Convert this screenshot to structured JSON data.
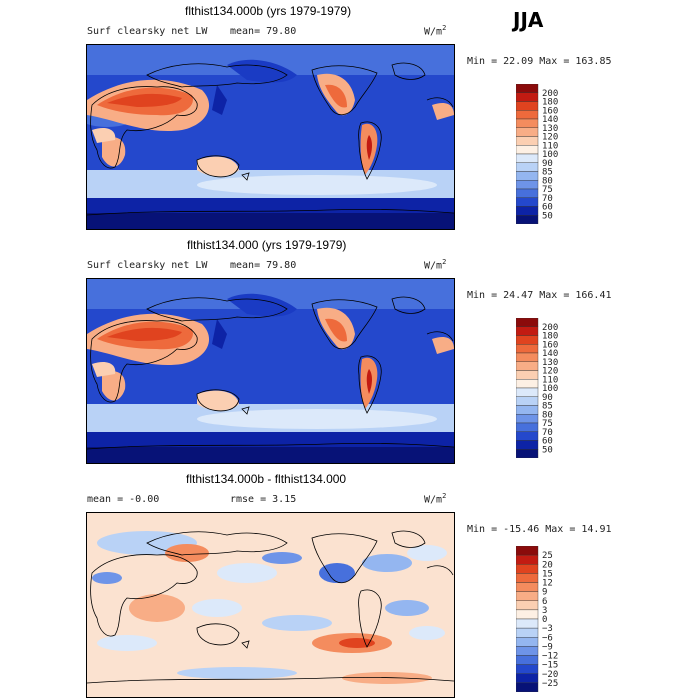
{
  "season": "JJA",
  "panels": [
    {
      "title": "flthist134.000b (yrs 1979-1979)",
      "left_label": "Surf clearsky net LW",
      "mid_label": "mean=  79.80",
      "units": "W/m",
      "units_sup": "2",
      "minmax": "Min =  22.09 Max = 163.85"
    },
    {
      "title": "flthist134.000 (yrs 1979-1979)",
      "left_label": "Surf clearsky net LW",
      "mid_label": "mean=  79.80",
      "units": "W/m",
      "units_sup": "2",
      "minmax": "Min =  24.47 Max = 166.41"
    },
    {
      "title": "flthist134.000b - flthist134.000",
      "left_label": "mean =  -0.00",
      "mid_label": "rmse =   3.15",
      "units": "W/m",
      "units_sup": "2",
      "minmax": "Min = -15.46 Max =  14.91"
    }
  ],
  "chart_data": [
    {
      "type": "heatmap",
      "title": "flthist134.000b (yrs 1979-1979)",
      "variable": "Surf clearsky net LW",
      "mean": 79.8,
      "min": 22.09,
      "max": 163.85,
      "units": "W/m2",
      "colorbar_levels": [
        "200",
        "180",
        "160",
        "140",
        "130",
        "120",
        "110",
        "100",
        "90",
        "85",
        "80",
        "75",
        "70",
        "60",
        "50"
      ],
      "colorbar_colors": [
        "#8b0b0b",
        "#c21b12",
        "#e0431f",
        "#ee6a3c",
        "#f48c5e",
        "#f8ad86",
        "#fbcfb2",
        "#fdf0e4",
        "#dce9fa",
        "#b9d2f6",
        "#94b6f0",
        "#6e94e8",
        "#4770dc",
        "#2448cc",
        "#0d23a6",
        "#071277"
      ]
    },
    {
      "type": "heatmap",
      "title": "flthist134.000 (yrs 1979-1979)",
      "variable": "Surf clearsky net LW",
      "mean": 79.8,
      "min": 24.47,
      "max": 166.41,
      "units": "W/m2",
      "colorbar_levels": [
        "200",
        "180",
        "160",
        "140",
        "130",
        "120",
        "110",
        "100",
        "90",
        "85",
        "80",
        "75",
        "70",
        "60",
        "50"
      ],
      "colorbar_colors": [
        "#8b0b0b",
        "#c21b12",
        "#e0431f",
        "#ee6a3c",
        "#f48c5e",
        "#f8ad86",
        "#fbcfb2",
        "#fdf0e4",
        "#dce9fa",
        "#b9d2f6",
        "#94b6f0",
        "#6e94e8",
        "#4770dc",
        "#2448cc",
        "#0d23a6",
        "#071277"
      ]
    },
    {
      "type": "heatmap",
      "title": "flthist134.000b - flthist134.000",
      "mean": -0.0,
      "rmse": 3.15,
      "min": -15.46,
      "max": 14.91,
      "units": "W/m2",
      "colorbar_levels": [
        "25",
        "20",
        "15",
        "12",
        "9",
        "6",
        "3",
        "0",
        "−3",
        "−6",
        "−9",
        "−12",
        "−15",
        "−20",
        "−25"
      ],
      "colorbar_colors": [
        "#8b0b0b",
        "#c21b12",
        "#e0431f",
        "#ee6a3c",
        "#f48c5e",
        "#f8ad86",
        "#fbcfb2",
        "#fdf0e4",
        "#dce9fa",
        "#b9d2f6",
        "#94b6f0",
        "#6e94e8",
        "#4770dc",
        "#2448cc",
        "#0d23a6",
        "#071277"
      ]
    }
  ]
}
